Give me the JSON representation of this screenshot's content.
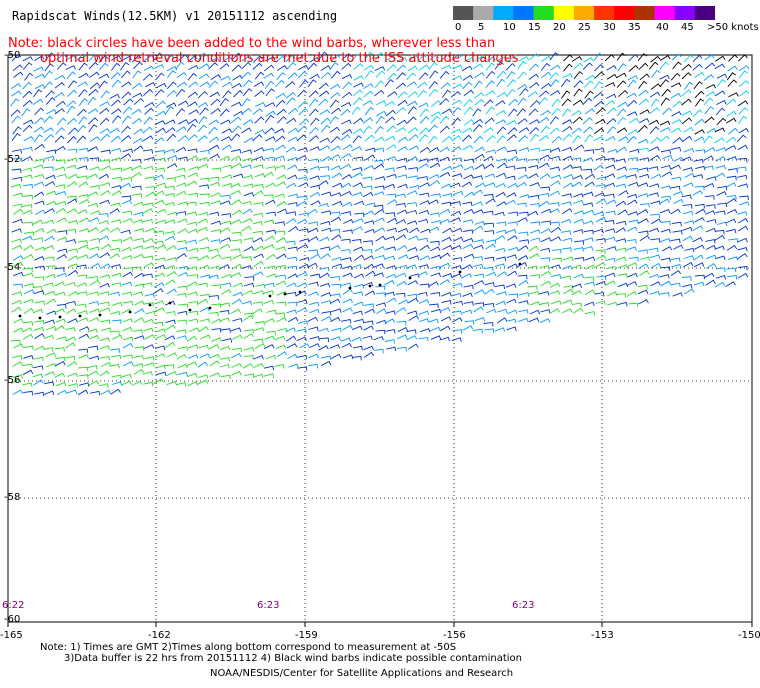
{
  "header": {
    "title": "Rapidscat Winds(12.5KM) v1 20151112 ascending",
    "note_line1": "Note: black circles have been added to the wind barbs, wherever less than",
    "note_line2": "optimal wind retrieval conditions are met due to the ISS attitude changes"
  },
  "legend": {
    "labels": [
      "0",
      "5",
      "10",
      "15",
      "20",
      "25",
      "30",
      "35",
      "40",
      "45",
      ">50 knots"
    ],
    "colors": [
      "#555555",
      "#aaaaaa",
      "#00aaff",
      "#0077ff",
      "#22dd22",
      "#ffff00",
      "#ffaa00",
      "#ff3300",
      "#ff0000",
      "#aa3300",
      "#ff00ff",
      "#8800ff",
      "#4b0082"
    ]
  },
  "map": {
    "lat_labels": [
      "-50",
      "-52",
      "-54",
      "-56",
      "-58",
      "-60"
    ],
    "lon_labels": [
      "-165",
      "-162",
      "-159",
      "-156",
      "-153",
      "-150"
    ],
    "time_labels": [
      "6:22",
      "6:23",
      "6:23"
    ]
  },
  "footer": {
    "line1": "Note: 1) Times are GMT 2)Times along bottom correspond to measurement at -50S",
    "line2": "3)Data buffer is 22 hrs from 20151112 4) Black wind barbs indicate possible contamination",
    "credit": "NOAA/NESDIS/Center for Satellite Applications and Research"
  }
}
